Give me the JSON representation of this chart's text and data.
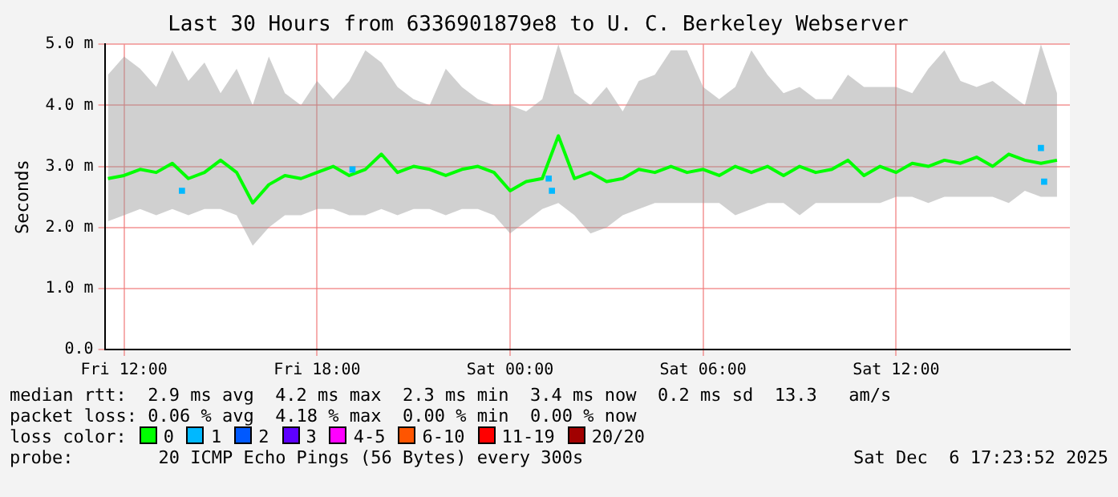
{
  "chart_data": {
    "type": "line",
    "title": "Last 30 Hours from 6336901879e8 to U. C. Berkeley Webserver",
    "ylabel": "Seconds",
    "xlim": [
      "2025-12-05T11:24",
      "2025-12-06T17:24"
    ],
    "xticks": [
      {
        "value": "2025-12-05T12:00",
        "label": "Fri 12:00"
      },
      {
        "value": "2025-12-05T18:00",
        "label": "Fri 18:00"
      },
      {
        "value": "2025-12-06T00:00",
        "label": "Sat 00:00"
      },
      {
        "value": "2025-12-06T06:00",
        "label": "Sat 06:00"
      },
      {
        "value": "2025-12-06T12:00",
        "label": "Sat 12:00"
      }
    ],
    "ylim": [
      0,
      5
    ],
    "yticks": [
      {
        "value": 0,
        "label": "0.0"
      },
      {
        "value": 1,
        "label": "1.0 m"
      },
      {
        "value": 2,
        "label": "2.0 m"
      },
      {
        "value": 3,
        "label": "3.0 m"
      },
      {
        "value": 4,
        "label": "4.0 m"
      },
      {
        "value": 5,
        "label": "5.0 m"
      }
    ],
    "x": [
      "2025-12-05T11:30",
      "2025-12-05T12:00",
      "2025-12-05T12:30",
      "2025-12-05T13:00",
      "2025-12-05T13:30",
      "2025-12-05T14:00",
      "2025-12-05T14:30",
      "2025-12-05T15:00",
      "2025-12-05T15:30",
      "2025-12-05T16:00",
      "2025-12-05T16:30",
      "2025-12-05T17:00",
      "2025-12-05T17:30",
      "2025-12-05T18:00",
      "2025-12-05T18:30",
      "2025-12-05T19:00",
      "2025-12-05T19:30",
      "2025-12-05T20:00",
      "2025-12-05T20:30",
      "2025-12-05T21:00",
      "2025-12-05T21:30",
      "2025-12-05T22:00",
      "2025-12-05T22:30",
      "2025-12-05T23:00",
      "2025-12-05T23:30",
      "2025-12-06T00:00",
      "2025-12-06T00:30",
      "2025-12-06T01:00",
      "2025-12-06T01:30",
      "2025-12-06T02:00",
      "2025-12-06T02:30",
      "2025-12-06T03:00",
      "2025-12-06T03:30",
      "2025-12-06T04:00",
      "2025-12-06T04:30",
      "2025-12-06T05:00",
      "2025-12-06T05:30",
      "2025-12-06T06:00",
      "2025-12-06T06:30",
      "2025-12-06T07:00",
      "2025-12-06T07:30",
      "2025-12-06T08:00",
      "2025-12-06T08:30",
      "2025-12-06T09:00",
      "2025-12-06T09:30",
      "2025-12-06T10:00",
      "2025-12-06T10:30",
      "2025-12-06T11:00",
      "2025-12-06T11:30",
      "2025-12-06T12:00",
      "2025-12-06T12:30",
      "2025-12-06T13:00",
      "2025-12-06T13:30",
      "2025-12-06T14:00",
      "2025-12-06T14:30",
      "2025-12-06T15:00",
      "2025-12-06T15:30",
      "2025-12-06T16:00",
      "2025-12-06T16:30",
      "2025-12-06T17:00"
    ],
    "series": [
      {
        "name": "0",
        "color": "#00ff00",
        "values": [
          2.8,
          2.85,
          2.95,
          2.9,
          3.05,
          2.8,
          2.9,
          3.1,
          2.9,
          2.4,
          2.7,
          2.85,
          2.8,
          2.9,
          3.0,
          2.85,
          2.95,
          3.2,
          2.9,
          3.0,
          2.95,
          2.85,
          2.95,
          3.0,
          2.9,
          2.6,
          2.75,
          2.8,
          3.5,
          2.8,
          2.9,
          2.75,
          2.8,
          2.95,
          2.9,
          3.0,
          2.9,
          2.95,
          2.85,
          3.0,
          2.9,
          3.0,
          2.85,
          3.0,
          2.9,
          2.95,
          3.1,
          2.85,
          3.0,
          2.9,
          3.05,
          3.0,
          3.1,
          3.05,
          3.15,
          3.0,
          3.2,
          3.1,
          3.05,
          3.1
        ],
        "lower": [
          2.1,
          2.2,
          2.3,
          2.2,
          2.3,
          2.2,
          2.3,
          2.3,
          2.2,
          1.7,
          2.0,
          2.2,
          2.2,
          2.3,
          2.3,
          2.2,
          2.2,
          2.3,
          2.2,
          2.3,
          2.3,
          2.2,
          2.3,
          2.3,
          2.2,
          1.9,
          2.1,
          2.3,
          2.4,
          2.2,
          1.9,
          2.0,
          2.2,
          2.3,
          2.4,
          2.4,
          2.4,
          2.4,
          2.4,
          2.2,
          2.3,
          2.4,
          2.4,
          2.2,
          2.4,
          2.4,
          2.4,
          2.4,
          2.4,
          2.5,
          2.5,
          2.4,
          2.5,
          2.5,
          2.5,
          2.5,
          2.4,
          2.6,
          2.5,
          2.5
        ],
        "upper": [
          4.5,
          4.8,
          4.6,
          4.3,
          4.9,
          4.4,
          4.7,
          4.2,
          4.6,
          4.0,
          4.8,
          4.2,
          4.0,
          4.4,
          4.1,
          4.4,
          4.9,
          4.7,
          4.3,
          4.1,
          4.0,
          4.6,
          4.3,
          4.1,
          4.0,
          4.0,
          3.9,
          4.1,
          5.0,
          4.2,
          4.0,
          4.3,
          3.9,
          4.4,
          4.5,
          4.9,
          4.9,
          4.3,
          4.1,
          4.3,
          4.9,
          4.5,
          4.2,
          4.3,
          4.1,
          4.1,
          4.5,
          4.3,
          4.3,
          4.3,
          4.2,
          4.6,
          4.9,
          4.4,
          4.3,
          4.4,
          4.2,
          4.0,
          5.0,
          4.2
        ]
      },
      {
        "name": "1",
        "color": "#00b8ff",
        "type": "scatter",
        "marker": "square",
        "x": [
          "2025-12-05T13:48",
          "2025-12-05T19:06",
          "2025-12-06T01:12",
          "2025-12-06T01:18",
          "2025-12-06T16:30",
          "2025-12-06T16:36"
        ],
        "values": [
          2.6,
          2.95,
          2.8,
          2.6,
          3.3,
          2.75
        ]
      },
      {
        "name": "2",
        "color": "#0059ff",
        "values": [
          null,
          null,
          null,
          null,
          null,
          null,
          null,
          null,
          null,
          null,
          null,
          null,
          null,
          null,
          null,
          null,
          null,
          null,
          null,
          null,
          null,
          null,
          null,
          null,
          null,
          null,
          null,
          null,
          null,
          null,
          null,
          null,
          null,
          null,
          null,
          null,
          null,
          null,
          null,
          null,
          null,
          null,
          null,
          null,
          null,
          null,
          null,
          null,
          null,
          null,
          null,
          null,
          null,
          null,
          null,
          null,
          null,
          null,
          null,
          null
        ]
      },
      {
        "name": "3",
        "color": "#5e00ff",
        "values": [
          null,
          null,
          null,
          null,
          null,
          null,
          null,
          null,
          null,
          null,
          null,
          null,
          null,
          null,
          null,
          null,
          null,
          null,
          null,
          null,
          null,
          null,
          null,
          null,
          null,
          null,
          null,
          null,
          null,
          null,
          null,
          null,
          null,
          null,
          null,
          null,
          null,
          null,
          null,
          null,
          null,
          null,
          null,
          null,
          null,
          null,
          null,
          null,
          null,
          null,
          null,
          null,
          null,
          null,
          null,
          null,
          null,
          null,
          null,
          null
        ]
      },
      {
        "name": "4-5",
        "color": "#ff00ff",
        "values": [
          null,
          null,
          null,
          null,
          null,
          null,
          null,
          null,
          null,
          null,
          null,
          null,
          null,
          null,
          null,
          null,
          null,
          null,
          null,
          null,
          null,
          null,
          null,
          null,
          null,
          null,
          null,
          null,
          null,
          null,
          null,
          null,
          null,
          null,
          null,
          null,
          null,
          null,
          null,
          null,
          null,
          null,
          null,
          null,
          null,
          null,
          null,
          null,
          null,
          null,
          null,
          null,
          null,
          null,
          null,
          null,
          null,
          null,
          null,
          null
        ]
      },
      {
        "name": "6-10",
        "color": "#ff5500",
        "values": [
          null,
          null,
          null,
          null,
          null,
          null,
          null,
          null,
          null,
          null,
          null,
          null,
          null,
          null,
          null,
          null,
          null,
          null,
          null,
          null,
          null,
          null,
          null,
          null,
          null,
          null,
          null,
          null,
          null,
          null,
          null,
          null,
          null,
          null,
          null,
          null,
          null,
          null,
          null,
          null,
          null,
          null,
          null,
          null,
          null,
          null,
          null,
          null,
          null,
          null,
          null,
          null,
          null,
          null,
          null,
          null,
          null,
          null,
          null,
          null
        ]
      },
      {
        "name": "11-19",
        "color": "#ff0000",
        "values": [
          null,
          null,
          null,
          null,
          null,
          null,
          null,
          null,
          null,
          null,
          null,
          null,
          null,
          null,
          null,
          null,
          null,
          null,
          null,
          null,
          null,
          null,
          null,
          null,
          null,
          null,
          null,
          null,
          null,
          null,
          null,
          null,
          null,
          null,
          null,
          null,
          null,
          null,
          null,
          null,
          null,
          null,
          null,
          null,
          null,
          null,
          null,
          null,
          null,
          null,
          null,
          null,
          null,
          null,
          null,
          null,
          null,
          null,
          null,
          null
        ]
      },
      {
        "name": "20/20",
        "color": "#a10000",
        "values": [
          null,
          null,
          null,
          null,
          null,
          null,
          null,
          null,
          null,
          null,
          null,
          null,
          null,
          null,
          null,
          null,
          null,
          null,
          null,
          null,
          null,
          null,
          null,
          null,
          null,
          null,
          null,
          null,
          null,
          null,
          null,
          null,
          null,
          null,
          null,
          null,
          null,
          null,
          null,
          null,
          null,
          null,
          null,
          null,
          null,
          null,
          null,
          null,
          null,
          null,
          null,
          null,
          null,
          null,
          null,
          null,
          null,
          null,
          null,
          null
        ]
      }
    ],
    "legend": "bottom",
    "legend_title": "loss color:",
    "grid": true,
    "marker": "none",
    "annotations": [
      "median rtt:  2.9 ms avg  4.2 ms max  2.3 ms min  3.4 ms now  0.2 ms sd  13.3   am/s",
      "packet loss: 0.06 % avg  4.18 % max  0.00 % min  0.00 % now",
      "probe:        20 ICMP Echo Pings (56 Bytes) every 300s",
      "Sat Dec  6 17:23:52 2025"
    ]
  }
}
